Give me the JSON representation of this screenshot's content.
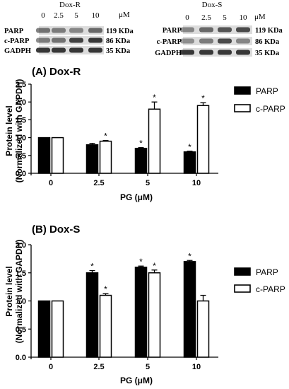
{
  "blots": [
    {
      "title": "Dox-R",
      "unit": "μM",
      "lanes": [
        "0",
        "2.5",
        "5",
        "10"
      ],
      "rows": [
        {
          "left": "PARP",
          "right": "119 KDa",
          "intensity": [
            0.55,
            0.5,
            0.45,
            0.6
          ]
        },
        {
          "left": "c-PARP",
          "right": "86 KDa",
          "intensity": [
            0.5,
            0.55,
            0.8,
            0.85
          ]
        },
        {
          "left": "GADPH",
          "right": "35 KDa",
          "intensity": [
            0.85,
            0.85,
            0.85,
            0.85
          ]
        }
      ]
    },
    {
      "title": "Dox-S",
      "unit": "μM",
      "lanes": [
        "0",
        "2.5",
        "5",
        "10"
      ],
      "rows": [
        {
          "left": "PARP",
          "right": "119 KDa",
          "intensity": [
            0.45,
            0.6,
            0.7,
            0.75
          ]
        },
        {
          "left": "c-PARP",
          "right": "86 KDa",
          "intensity": [
            0.4,
            0.5,
            0.75,
            0.45
          ]
        },
        {
          "left": "GADPH",
          "right": "35 KDa",
          "intensity": [
            0.85,
            0.85,
            0.85,
            0.85
          ]
        }
      ]
    }
  ],
  "colors": {
    "bar_parp": "#000000",
    "bar_cparp": "#ffffff",
    "stroke": "#000000",
    "blot_background": "#dcdcdc",
    "band": "#1a1a1a"
  },
  "chart_data": [
    {
      "type": "bar",
      "title": "(A) Dox-R",
      "xlabel": "PG (μM)",
      "ylabel_lines": [
        "Protein level",
        "(Normalized with GAPDH)"
      ],
      "categories": [
        "0",
        "2.5",
        "5",
        "10"
      ],
      "ylim": [
        0,
        2.5
      ],
      "yticks": [
        "0.0",
        "0.5",
        "1.0",
        "1.5",
        "2.0",
        "2.5"
      ],
      "legend_position": "right",
      "series": [
        {
          "name": "PARP",
          "values": [
            1.0,
            0.8,
            0.7,
            0.6
          ],
          "errors": [
            0,
            0.04,
            0.02,
            0.02
          ],
          "significant": [
            false,
            false,
            true,
            true
          ]
        },
        {
          "name": "c-PARP",
          "values": [
            1.0,
            0.9,
            1.8,
            1.9
          ],
          "errors": [
            0,
            0.02,
            0.2,
            0.08
          ],
          "significant": [
            false,
            true,
            true,
            true
          ]
        }
      ],
      "sig_marker": "*"
    },
    {
      "type": "bar",
      "title": "(B) Dox-S",
      "xlabel": "PG (μM)",
      "ylabel_lines": [
        "Protein level",
        "(Normalized with GAPDH)"
      ],
      "categories": [
        "0",
        "2.5",
        "5",
        "10"
      ],
      "ylim": [
        0,
        2.0
      ],
      "yticks": [
        "0.0",
        "0.5",
        "1.0",
        "1.5",
        "2.0"
      ],
      "legend_position": "right",
      "series": [
        {
          "name": "PARP",
          "values": [
            1.0,
            1.5,
            1.6,
            1.7
          ],
          "errors": [
            0,
            0.04,
            0.02,
            0.02
          ],
          "significant": [
            false,
            true,
            true,
            true
          ]
        },
        {
          "name": "c-PARP",
          "values": [
            1.0,
            1.1,
            1.5,
            1.0
          ],
          "errors": [
            0,
            0.03,
            0.05,
            0.1
          ],
          "significant": [
            false,
            true,
            true,
            false
          ]
        }
      ],
      "sig_marker": "*"
    }
  ]
}
